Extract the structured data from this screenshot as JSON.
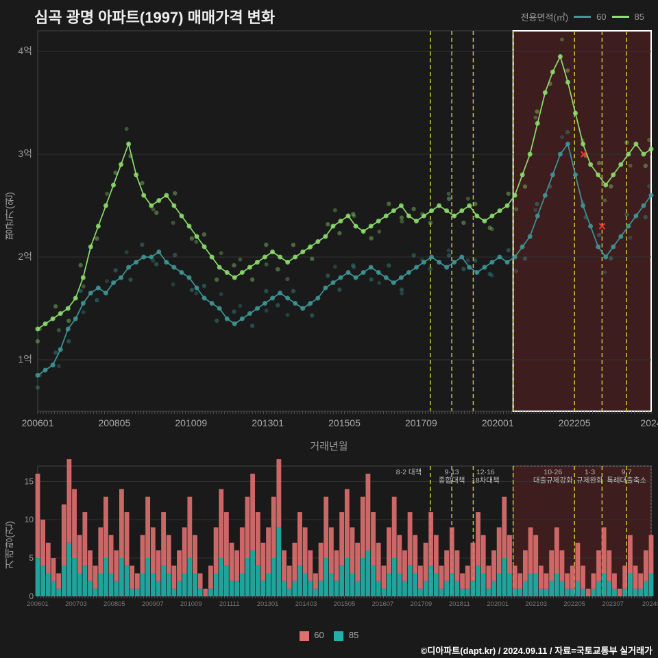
{
  "title": "심곡 광명 아파트(1997) 매매가격 변화",
  "legend_title": "전용면적(㎡)",
  "series": [
    {
      "name": "60",
      "color": "#3e9999",
      "bar_color": "#e07070"
    },
    {
      "name": "85",
      "color": "#8ee070",
      "bar_color": "#20b2aa"
    }
  ],
  "top_chart": {
    "ylabel": "평균가(원)",
    "xlabel": "거래년월",
    "ylim": [
      0.5,
      4.2
    ],
    "yticks": [
      1,
      2,
      3,
      4
    ],
    "ytick_labels": [
      "1억",
      "2억",
      "3억",
      "4억"
    ],
    "xtick_labels": [
      "200601",
      "200805",
      "201009",
      "201301",
      "201505",
      "201709",
      "202001",
      "202205",
      "2024"
    ],
    "highlight_box": {
      "x_start": 0.775,
      "x_end": 1.0,
      "color": "#552020",
      "border": "#ffffff"
    },
    "vlines_x": [
      0.64,
      0.675,
      0.71,
      0.775,
      0.875,
      0.92,
      0.96
    ],
    "vline_color": "#cccc33",
    "series60_color": "#3e9999",
    "series85_color": "#8ee070",
    "red_x_markers": [
      {
        "x": 0.89,
        "y": 3.0
      },
      {
        "x": 0.92,
        "y": 2.3
      }
    ],
    "data60": [
      0.85,
      0.9,
      0.95,
      1.1,
      1.3,
      1.4,
      1.55,
      1.65,
      1.7,
      1.65,
      1.75,
      1.8,
      1.9,
      1.95,
      2.0,
      2.0,
      2.05,
      1.95,
      1.9,
      1.85,
      1.8,
      1.7,
      1.6,
      1.55,
      1.5,
      1.4,
      1.35,
      1.4,
      1.45,
      1.5,
      1.55,
      1.6,
      1.65,
      1.6,
      1.55,
      1.5,
      1.55,
      1.6,
      1.7,
      1.75,
      1.8,
      1.85,
      1.8,
      1.85,
      1.9,
      1.85,
      1.8,
      1.75,
      1.8,
      1.85,
      1.9,
      1.95,
      2.0,
      1.95,
      1.9,
      1.95,
      2.0,
      1.9,
      1.85,
      1.9,
      1.95,
      2.0,
      1.95,
      2.0,
      2.1,
      2.2,
      2.4,
      2.6,
      2.8,
      3.0,
      3.1,
      2.8,
      2.5,
      2.3,
      2.1,
      2.0,
      2.1,
      2.2,
      2.3,
      2.4,
      2.5,
      2.6
    ],
    "data85": [
      1.3,
      1.35,
      1.4,
      1.45,
      1.5,
      1.6,
      1.8,
      2.1,
      2.3,
      2.5,
      2.7,
      2.9,
      3.1,
      2.8,
      2.6,
      2.5,
      2.55,
      2.6,
      2.5,
      2.4,
      2.3,
      2.2,
      2.1,
      2.0,
      1.9,
      1.85,
      1.8,
      1.85,
      1.9,
      1.95,
      2.0,
      2.05,
      2.0,
      1.95,
      2.0,
      2.05,
      2.1,
      2.15,
      2.2,
      2.3,
      2.35,
      2.4,
      2.3,
      2.25,
      2.3,
      2.35,
      2.4,
      2.45,
      2.5,
      2.4,
      2.35,
      2.4,
      2.45,
      2.5,
      2.45,
      2.4,
      2.45,
      2.5,
      2.4,
      2.35,
      2.4,
      2.45,
      2.5,
      2.6,
      2.8,
      3.0,
      3.3,
      3.6,
      3.8,
      3.95,
      3.7,
      3.4,
      3.1,
      2.9,
      2.8,
      2.7,
      2.8,
      2.9,
      3.0,
      3.1,
      3.0,
      3.05
    ]
  },
  "bottom_chart": {
    "ylabel": "거래량(건)",
    "ylim": [
      0,
      17
    ],
    "yticks": [
      0,
      5,
      10,
      15
    ],
    "xtick_labels": [
      "200601",
      "200703",
      "200805",
      "200907",
      "201009",
      "201111",
      "201301",
      "201403",
      "201505",
      "201607",
      "201709",
      "201811",
      "202001",
      "202103",
      "202205",
      "202307",
      "20240"
    ],
    "annotations": [
      {
        "x": 0.605,
        "text": "8·2 대책"
      },
      {
        "x": 0.675,
        "text": "9·13\n종합대책"
      },
      {
        "x": 0.73,
        "text": "12·16\n18차대책"
      },
      {
        "x": 0.84,
        "text": "10·26\n대출규제강화"
      },
      {
        "x": 0.9,
        "text": "1·3\n규제완화"
      },
      {
        "x": 0.96,
        "text": "9·7\n특례대출축소"
      }
    ],
    "vlines_x": [
      0.64,
      0.675,
      0.71,
      0.775,
      0.875,
      0.92,
      0.96
    ],
    "highlight_box": {
      "x_start": 0.775,
      "x_end": 1.0
    },
    "data60": [
      11,
      6,
      4,
      3,
      2,
      8,
      17,
      9,
      5,
      7,
      4,
      3,
      6,
      8,
      5,
      4,
      9,
      7,
      3,
      2,
      5,
      8,
      6,
      4,
      7,
      5,
      3,
      4,
      6,
      8,
      5,
      2,
      1,
      3,
      6,
      9,
      7,
      5,
      4,
      6,
      8,
      10,
      7,
      5,
      6,
      8,
      9,
      4,
      3,
      5,
      7,
      6,
      4,
      2,
      5,
      8,
      6,
      4,
      7,
      9,
      6,
      5,
      8,
      10,
      7,
      5,
      3,
      6,
      8,
      5,
      4,
      7,
      5,
      3,
      5,
      7,
      5,
      3,
      4,
      6,
      4,
      2,
      3,
      5,
      7,
      5,
      3,
      4,
      6,
      8,
      5,
      3,
      2,
      4,
      6,
      5,
      3,
      2,
      4,
      6,
      4,
      2,
      3,
      5,
      3,
      1,
      2,
      4,
      6,
      4,
      2,
      1,
      3,
      5,
      3,
      2,
      4,
      5
    ],
    "data85": [
      5,
      4,
      3,
      2,
      1,
      4,
      7,
      5,
      3,
      4,
      2,
      1,
      3,
      5,
      3,
      2,
      5,
      4,
      1,
      1,
      3,
      5,
      3,
      2,
      4,
      3,
      1,
      2,
      3,
      5,
      3,
      1,
      0,
      1,
      3,
      5,
      4,
      2,
      2,
      3,
      5,
      6,
      4,
      2,
      3,
      5,
      9,
      2,
      1,
      2,
      4,
      3,
      2,
      1,
      2,
      5,
      3,
      2,
      4,
      5,
      3,
      2,
      5,
      6,
      4,
      2,
      1,
      3,
      5,
      3,
      2,
      4,
      3,
      1,
      2,
      4,
      3,
      1,
      2,
      3,
      2,
      1,
      1,
      2,
      4,
      3,
      1,
      2,
      3,
      5,
      3,
      1,
      1,
      2,
      3,
      3,
      1,
      1,
      2,
      3,
      2,
      1,
      1,
      2,
      1,
      0,
      1,
      2,
      3,
      2,
      1,
      0,
      1,
      3,
      1,
      1,
      2,
      3
    ]
  },
  "footer": "©디아파트(dapt.kr) / 2024.09.11 / 자료=국토교통부 실거래가",
  "colors": {
    "bg": "#1a1a1a",
    "grid": "#333",
    "text": "#999",
    "vline": "#cccc33"
  }
}
